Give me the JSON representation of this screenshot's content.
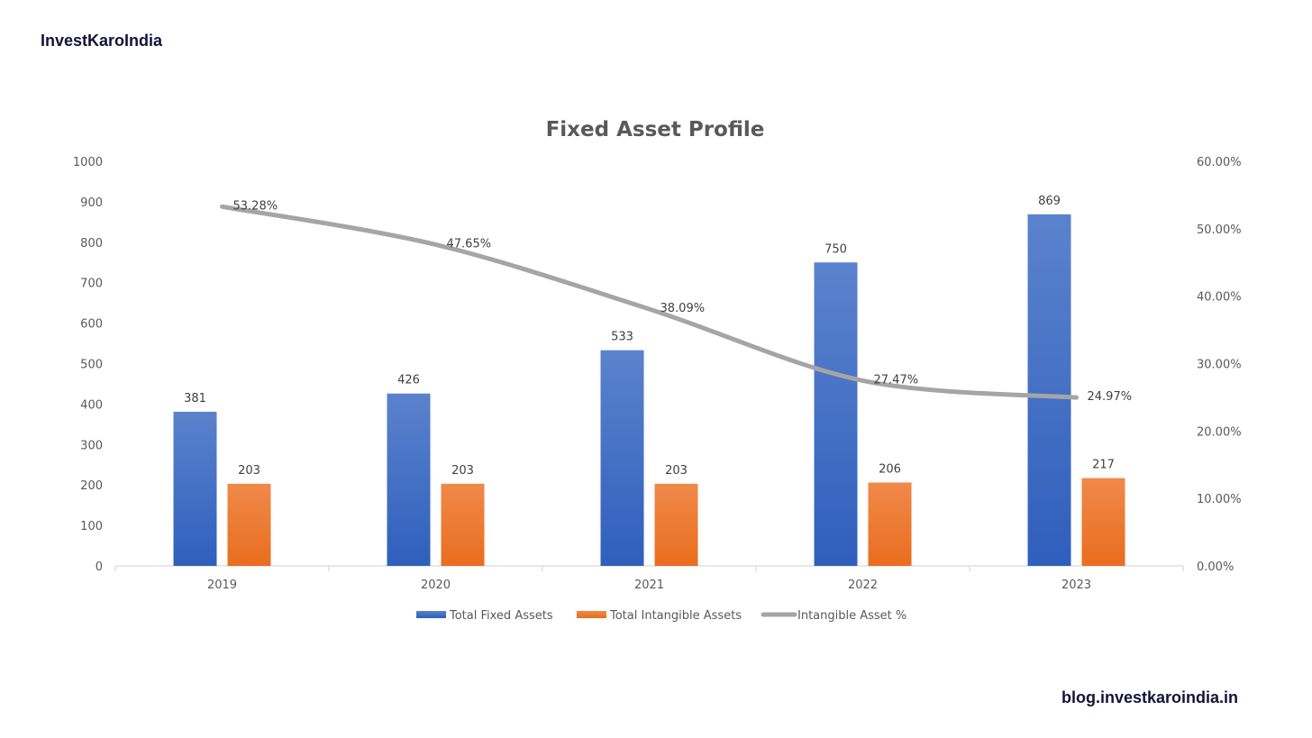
{
  "brand": "InvestKaroIndia",
  "footer_url": "blog.investkaroindia.in",
  "colors": {
    "fixed": "#4472c4",
    "intangible": "#ed7d31",
    "line": "#a5a5a5"
  },
  "chart_data": {
    "type": "bar",
    "title": "Fixed Asset Profile",
    "categories": [
      "2019",
      "2020",
      "2021",
      "2022",
      "2023"
    ],
    "series": [
      {
        "name": "Total Fixed Assets",
        "type": "bar",
        "axis": "left",
        "values": [
          381,
          426,
          533,
          750,
          869
        ],
        "labels": [
          "381",
          "426",
          "533",
          "750",
          "869"
        ]
      },
      {
        "name": "Total Intangible Assets",
        "type": "bar",
        "axis": "left",
        "values": [
          203,
          203,
          203,
          206,
          217
        ],
        "labels": [
          "203",
          "203",
          "203",
          "206",
          "217"
        ]
      },
      {
        "name": "Intangible Asset %",
        "type": "line",
        "axis": "right",
        "values": [
          53.28,
          47.65,
          38.09,
          27.47,
          24.97
        ],
        "labels": [
          "53.28%",
          "47.65%",
          "38.09%",
          "27.47%",
          "24.97%"
        ]
      }
    ],
    "ylim_left": [
      0,
      1000
    ],
    "ylim_right": [
      0,
      60
    ],
    "left_ticks": [
      "0",
      "100",
      "200",
      "300",
      "400",
      "500",
      "600",
      "700",
      "800",
      "900",
      "1000"
    ],
    "right_ticks": [
      "0.00%",
      "10.00%",
      "20.00%",
      "30.00%",
      "40.00%",
      "50.00%",
      "60.00%"
    ],
    "grid": false,
    "legend_position": "bottom"
  }
}
